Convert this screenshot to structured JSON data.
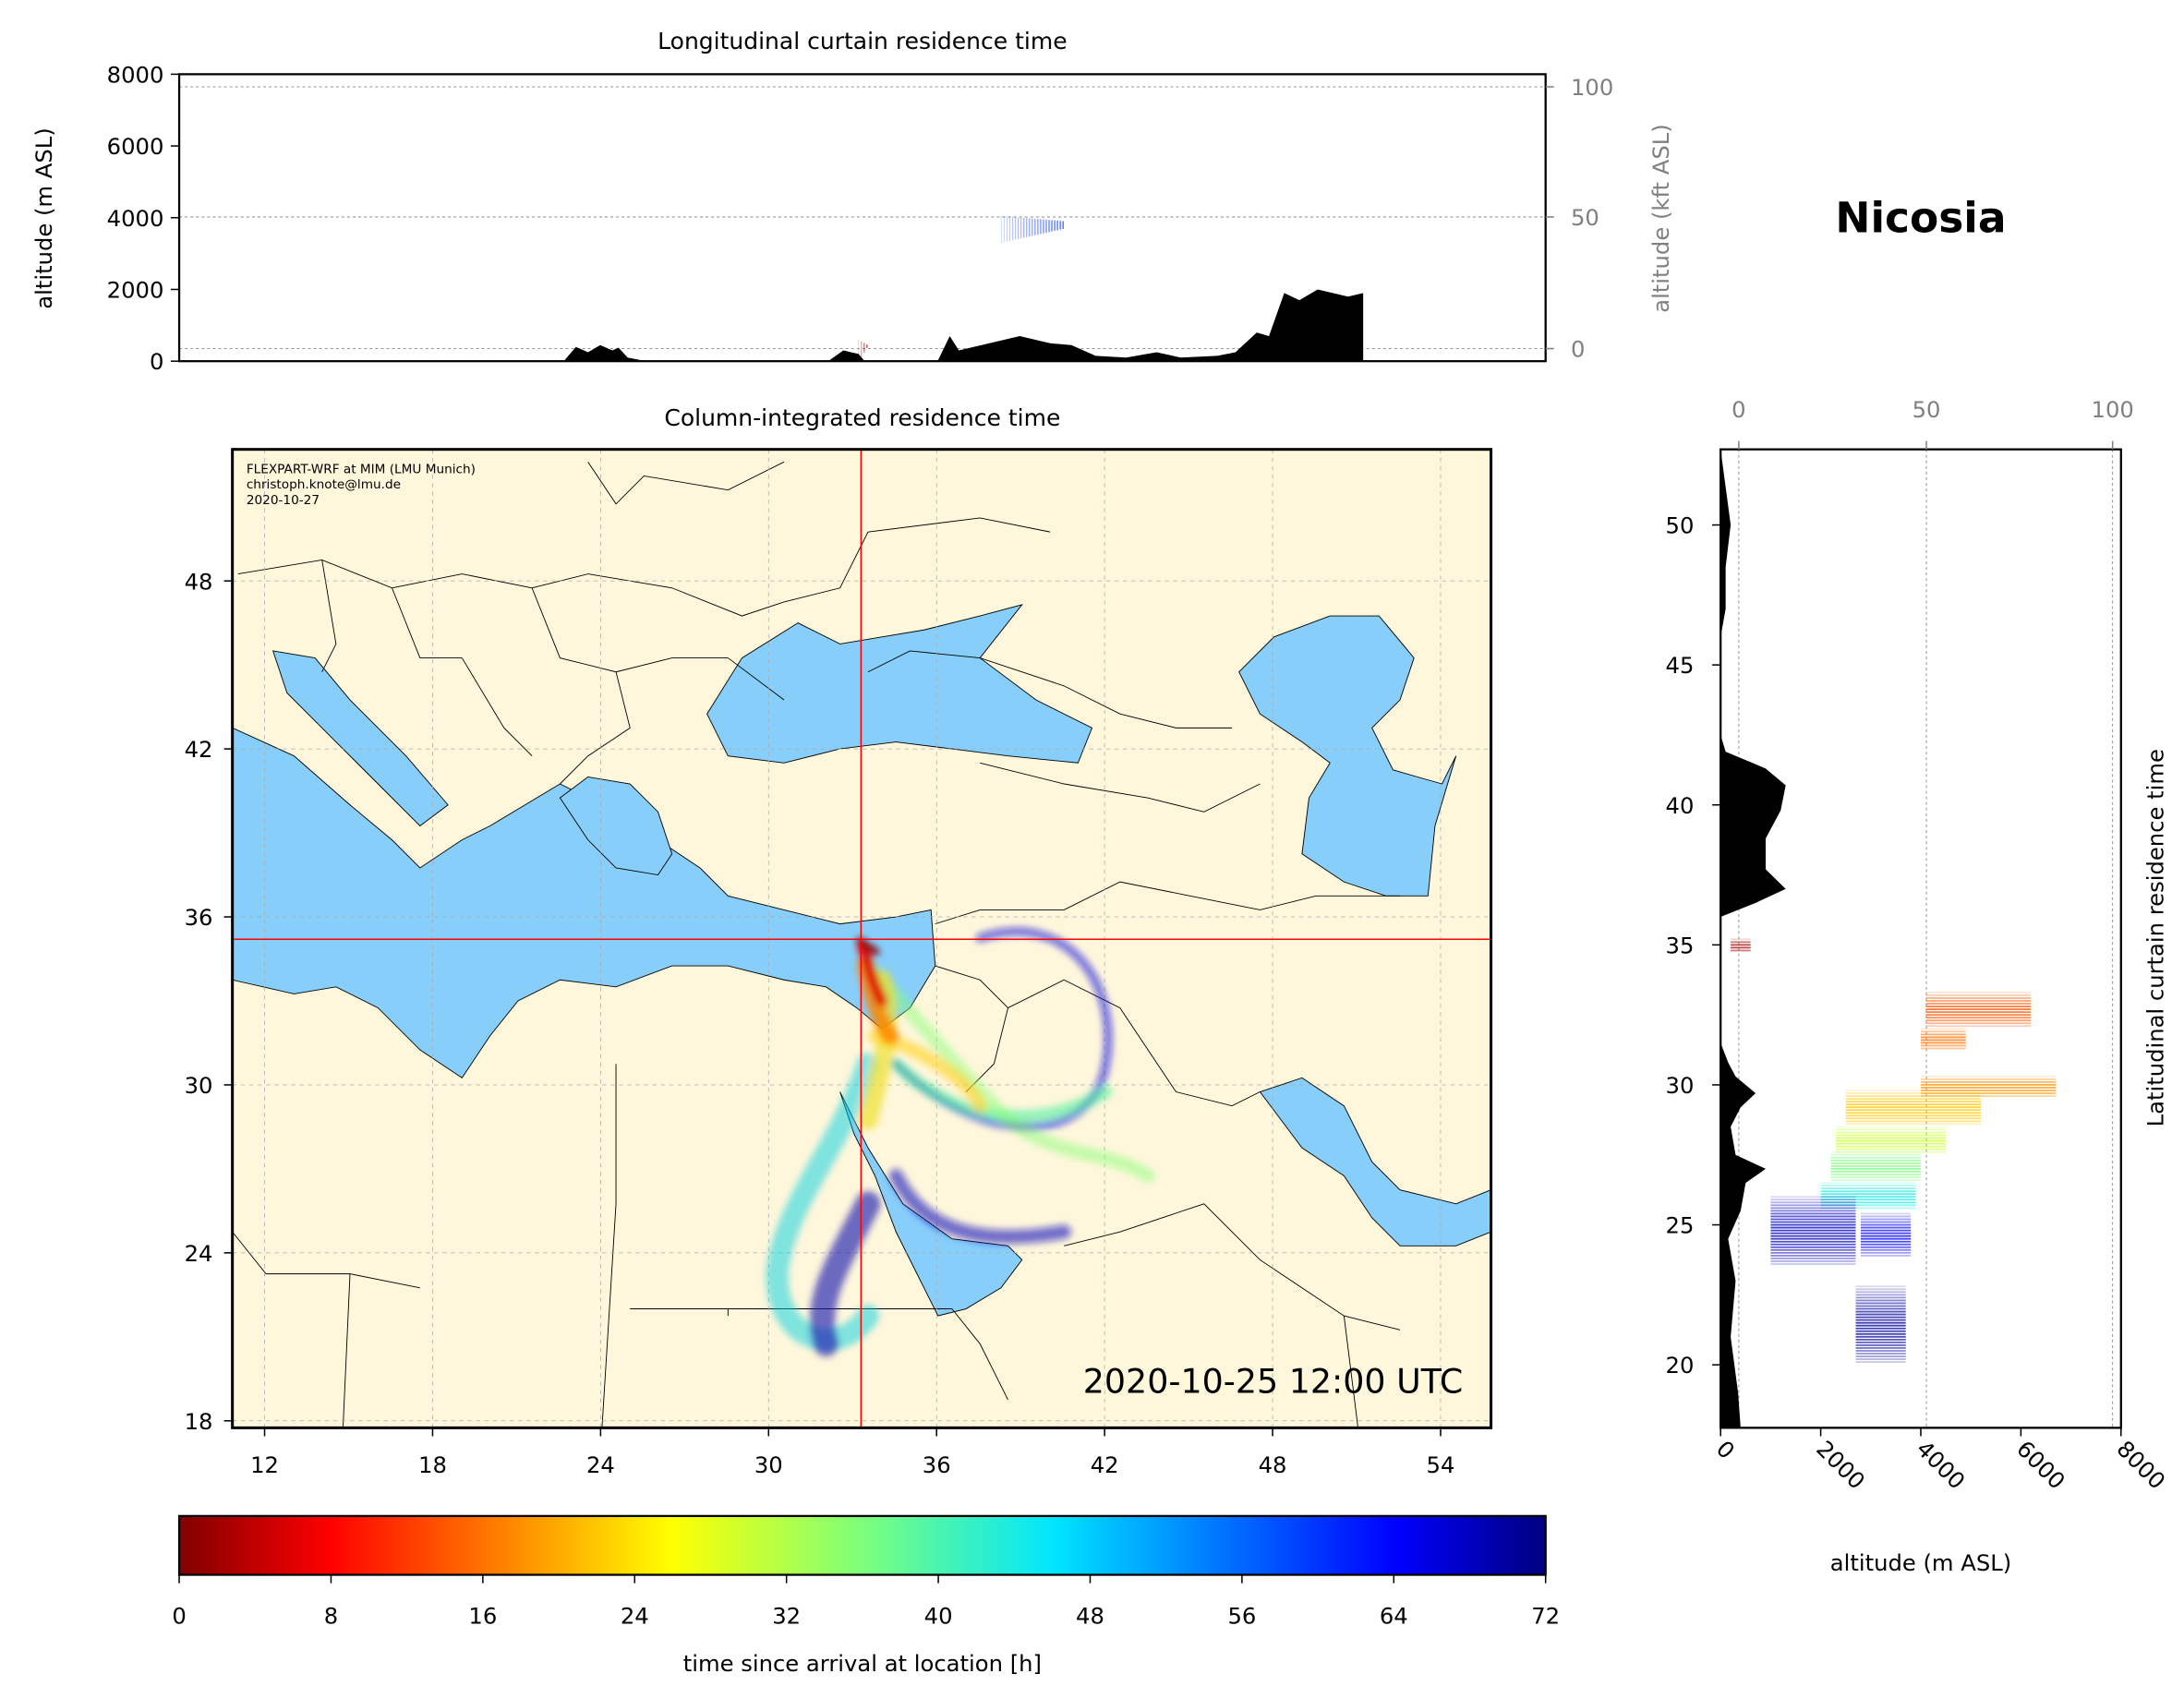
{
  "location_name": "Nicosia",
  "timestamp": "2020-10-25 12:00 UTC",
  "watermark": [
    "FLEXPART-WRF at MIM (LMU Munich)",
    "christoph.knote@lmu.de",
    "2020-10-27"
  ],
  "colors": {
    "land": "#fff7dc",
    "water": "#87cefa",
    "terrain": "#000000",
    "crosshair": "#ff0000"
  },
  "chart_data": [
    {
      "type": "area",
      "title": "Longitudinal curtain residence time",
      "ylabel": "altitude (m ASL)",
      "ylabel_right": "altitude (kft ASL)",
      "ylim": [
        0,
        8000
      ],
      "yticks": [
        "0",
        "2000",
        "4000",
        "6000",
        "8000"
      ],
      "yticks_right": [
        "0",
        "50",
        "100"
      ],
      "yticks_right_values_kft": [
        0,
        50,
        100
      ],
      "xlim_lon": [
        10.85,
        55.8
      ],
      "terrain_lon_alt": [
        [
          23.5,
          0
        ],
        [
          23.9,
          400
        ],
        [
          24.3,
          250
        ],
        [
          24.7,
          450
        ],
        [
          25.1,
          300
        ],
        [
          25.3,
          380
        ],
        [
          25.6,
          100
        ],
        [
          26.2,
          0
        ],
        [
          32.2,
          0
        ],
        [
          32.7,
          300
        ],
        [
          33.2,
          200
        ],
        [
          33.4,
          0
        ],
        [
          35.8,
          0
        ],
        [
          36.2,
          700
        ],
        [
          36.5,
          300
        ],
        [
          37.5,
          500
        ],
        [
          38.5,
          700
        ],
        [
          39.5,
          500
        ],
        [
          40.2,
          450
        ],
        [
          41,
          150
        ],
        [
          42,
          100
        ],
        [
          43,
          250
        ],
        [
          43.8,
          100
        ],
        [
          45,
          150
        ],
        [
          45.6,
          250
        ],
        [
          46.3,
          800
        ],
        [
          46.7,
          700
        ],
        [
          47.2,
          1900
        ],
        [
          47.7,
          1700
        ],
        [
          48.3,
          2000
        ],
        [
          49.3,
          1800
        ],
        [
          49.8,
          1900
        ],
        [
          49.8,
          0
        ]
      ],
      "residence_patches": [
        {
          "lon_range": [
            33.2,
            33.5
          ],
          "alt_range": [
            0,
            600
          ],
          "hours": 2
        },
        {
          "lon_range": [
            37.9,
            40.0
          ],
          "alt_range": [
            3300,
            4050
          ],
          "hours": 60
        }
      ]
    },
    {
      "type": "heatmap",
      "title": "Column-integrated residence time",
      "xticks": [
        "12",
        "18",
        "24",
        "30",
        "36",
        "42",
        "48",
        "54"
      ],
      "yticks": [
        "18",
        "24",
        "30",
        "36",
        "42",
        "48"
      ],
      "xlim_lon": [
        10.85,
        55.8
      ],
      "ylim_lat": [
        17.75,
        52.7
      ],
      "crosshair": {
        "lon": 33.3,
        "lat": 35.2
      },
      "colorbar": {
        "label": "time since arrival at location [h]",
        "range": [
          0,
          72
        ],
        "ticks": [
          "0",
          "8",
          "16",
          "24",
          "32",
          "40",
          "48",
          "56",
          "64",
          "72"
        ],
        "colormap": "jet_r"
      }
    },
    {
      "type": "area",
      "title": "Latitudinal curtain residence time",
      "xlabel": "altitude (m ASL)",
      "xlim": [
        0,
        8000
      ],
      "xticks": [
        "0",
        "2000",
        "4000",
        "6000",
        "8000"
      ],
      "xticks_top_kft": [
        "0",
        "50",
        "100"
      ],
      "yticks": [
        "20",
        "25",
        "30",
        "35",
        "40",
        "45",
        "50"
      ],
      "ylim_lat": [
        17.75,
        52.7
      ],
      "terrain_lat_alt": [
        [
          17.75,
          400
        ],
        [
          19,
          350
        ],
        [
          21,
          200
        ],
        [
          23,
          300
        ],
        [
          24.5,
          150
        ],
        [
          25.5,
          400
        ],
        [
          26.5,
          500
        ],
        [
          27,
          900
        ],
        [
          27.5,
          300
        ],
        [
          28.5,
          200
        ],
        [
          29.2,
          400
        ],
        [
          29.7,
          700
        ],
        [
          30.3,
          300
        ],
        [
          30.8,
          150
        ],
        [
          31.5,
          0
        ],
        [
          36,
          0
        ],
        [
          36.5,
          700
        ],
        [
          37,
          1300
        ],
        [
          37.7,
          900
        ],
        [
          38.8,
          900
        ],
        [
          39.8,
          1200
        ],
        [
          40.7,
          1300
        ],
        [
          41.3,
          900
        ],
        [
          41.9,
          100
        ],
        [
          42.5,
          0
        ],
        [
          46,
          0
        ],
        [
          47,
          100
        ],
        [
          48.5,
          100
        ],
        [
          50,
          200
        ],
        [
          52.7,
          0
        ]
      ],
      "residence_patches": [
        {
          "lat_range": [
            34.7,
            35.2
          ],
          "alt_range": [
            200,
            600
          ],
          "hours": 2
        },
        {
          "lat_range": [
            32.0,
            33.3
          ],
          "alt_range": [
            4100,
            6200
          ],
          "hours": 14
        },
        {
          "lat_range": [
            31.2,
            32.0
          ],
          "alt_range": [
            4000,
            4900
          ],
          "hours": 16
        },
        {
          "lat_range": [
            29.5,
            30.3
          ],
          "alt_range": [
            4000,
            6700
          ],
          "hours": 18
        },
        {
          "lat_range": [
            28.5,
            29.8
          ],
          "alt_range": [
            2500,
            5200
          ],
          "hours": 22
        },
        {
          "lat_range": [
            27.5,
            28.5
          ],
          "alt_range": [
            2300,
            4500
          ],
          "hours": 30
        },
        {
          "lat_range": [
            26.5,
            27.6
          ],
          "alt_range": [
            2200,
            4000
          ],
          "hours": 36
        },
        {
          "lat_range": [
            25.5,
            26.5
          ],
          "alt_range": [
            2000,
            3900
          ],
          "hours": 44
        },
        {
          "lat_range": [
            23.8,
            25.4
          ],
          "alt_range": [
            2800,
            3800
          ],
          "hours": 64
        },
        {
          "lat_range": [
            23.5,
            26.0
          ],
          "alt_range": [
            1000,
            2700
          ],
          "hours": 68
        },
        {
          "lat_range": [
            20.0,
            22.8
          ],
          "alt_range": [
            2700,
            3700
          ],
          "hours": 70
        }
      ]
    }
  ]
}
